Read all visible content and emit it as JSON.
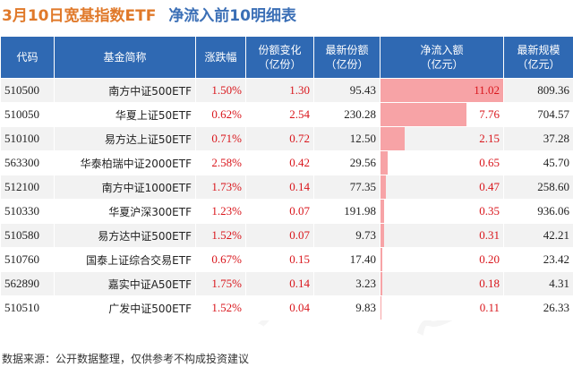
{
  "title": {
    "part1": "3月10日宽基指数ETF",
    "part2": "净流入前10明细表"
  },
  "headers": [
    "代码",
    "基金简称",
    "涨跌幅",
    "份额变化\n（亿份）",
    "最新份额\n（亿份）",
    "净流入额\n（亿元）",
    "最新规模\n（亿元）"
  ],
  "chart_data": {
    "type": "table",
    "columns": [
      "代码",
      "基金简称",
      "涨跌幅",
      "份额变化（亿份）",
      "最新份额（亿份）",
      "净流入额（亿元）",
      "最新规模（亿元）"
    ],
    "rows": [
      {
        "code": "510500",
        "name": "南方中证500ETF",
        "change": "1.50%",
        "share_change": "1.30",
        "latest_share": "95.43",
        "net_inflow": "11.02",
        "latest_scale": "809.36"
      },
      {
        "code": "510050",
        "name": "华夏上证50ETF",
        "change": "0.62%",
        "share_change": "2.54",
        "latest_share": "230.28",
        "net_inflow": "7.76",
        "latest_scale": "704.57"
      },
      {
        "code": "510100",
        "name": "易方达上证50ETF",
        "change": "0.71%",
        "share_change": "0.72",
        "latest_share": "12.50",
        "net_inflow": "2.15",
        "latest_scale": "37.28"
      },
      {
        "code": "563300",
        "name": "华泰柏瑞中证2000ETF",
        "change": "2.58%",
        "share_change": "0.42",
        "latest_share": "29.56",
        "net_inflow": "0.65",
        "latest_scale": "45.70"
      },
      {
        "code": "512100",
        "name": "南方中证1000ETF",
        "change": "1.73%",
        "share_change": "0.14",
        "latest_share": "77.35",
        "net_inflow": "0.47",
        "latest_scale": "258.60"
      },
      {
        "code": "510330",
        "name": "华夏沪深300ETF",
        "change": "1.23%",
        "share_change": "0.07",
        "latest_share": "191.98",
        "net_inflow": "0.35",
        "latest_scale": "936.06"
      },
      {
        "code": "510580",
        "name": "易方达中证500ETF",
        "change": "1.52%",
        "share_change": "0.07",
        "latest_share": "9.73",
        "net_inflow": "0.31",
        "latest_scale": "42.21"
      },
      {
        "code": "510760",
        "name": "国泰上证综合交易ETF",
        "change": "0.67%",
        "share_change": "0.15",
        "latest_share": "17.40",
        "net_inflow": "0.20",
        "latest_scale": "23.42"
      },
      {
        "code": "562890",
        "name": "嘉实中证A50ETF",
        "change": "1.75%",
        "share_change": "0.14",
        "latest_share": "3.23",
        "net_inflow": "0.18",
        "latest_scale": "4.31"
      },
      {
        "code": "510510",
        "name": "广发中证500ETF",
        "change": "1.52%",
        "share_change": "0.04",
        "latest_share": "9.83",
        "net_inflow": "0.11",
        "latest_scale": "26.33"
      }
    ],
    "bar_column": "net_inflow",
    "bar_max": 11.02
  },
  "colors": {
    "header_bg": "#2f69b3",
    "bar": "#f7a3a6",
    "positive": "#d9161c"
  },
  "source": "数据来源：公开数据整理，仅供参考不构成投资建议"
}
